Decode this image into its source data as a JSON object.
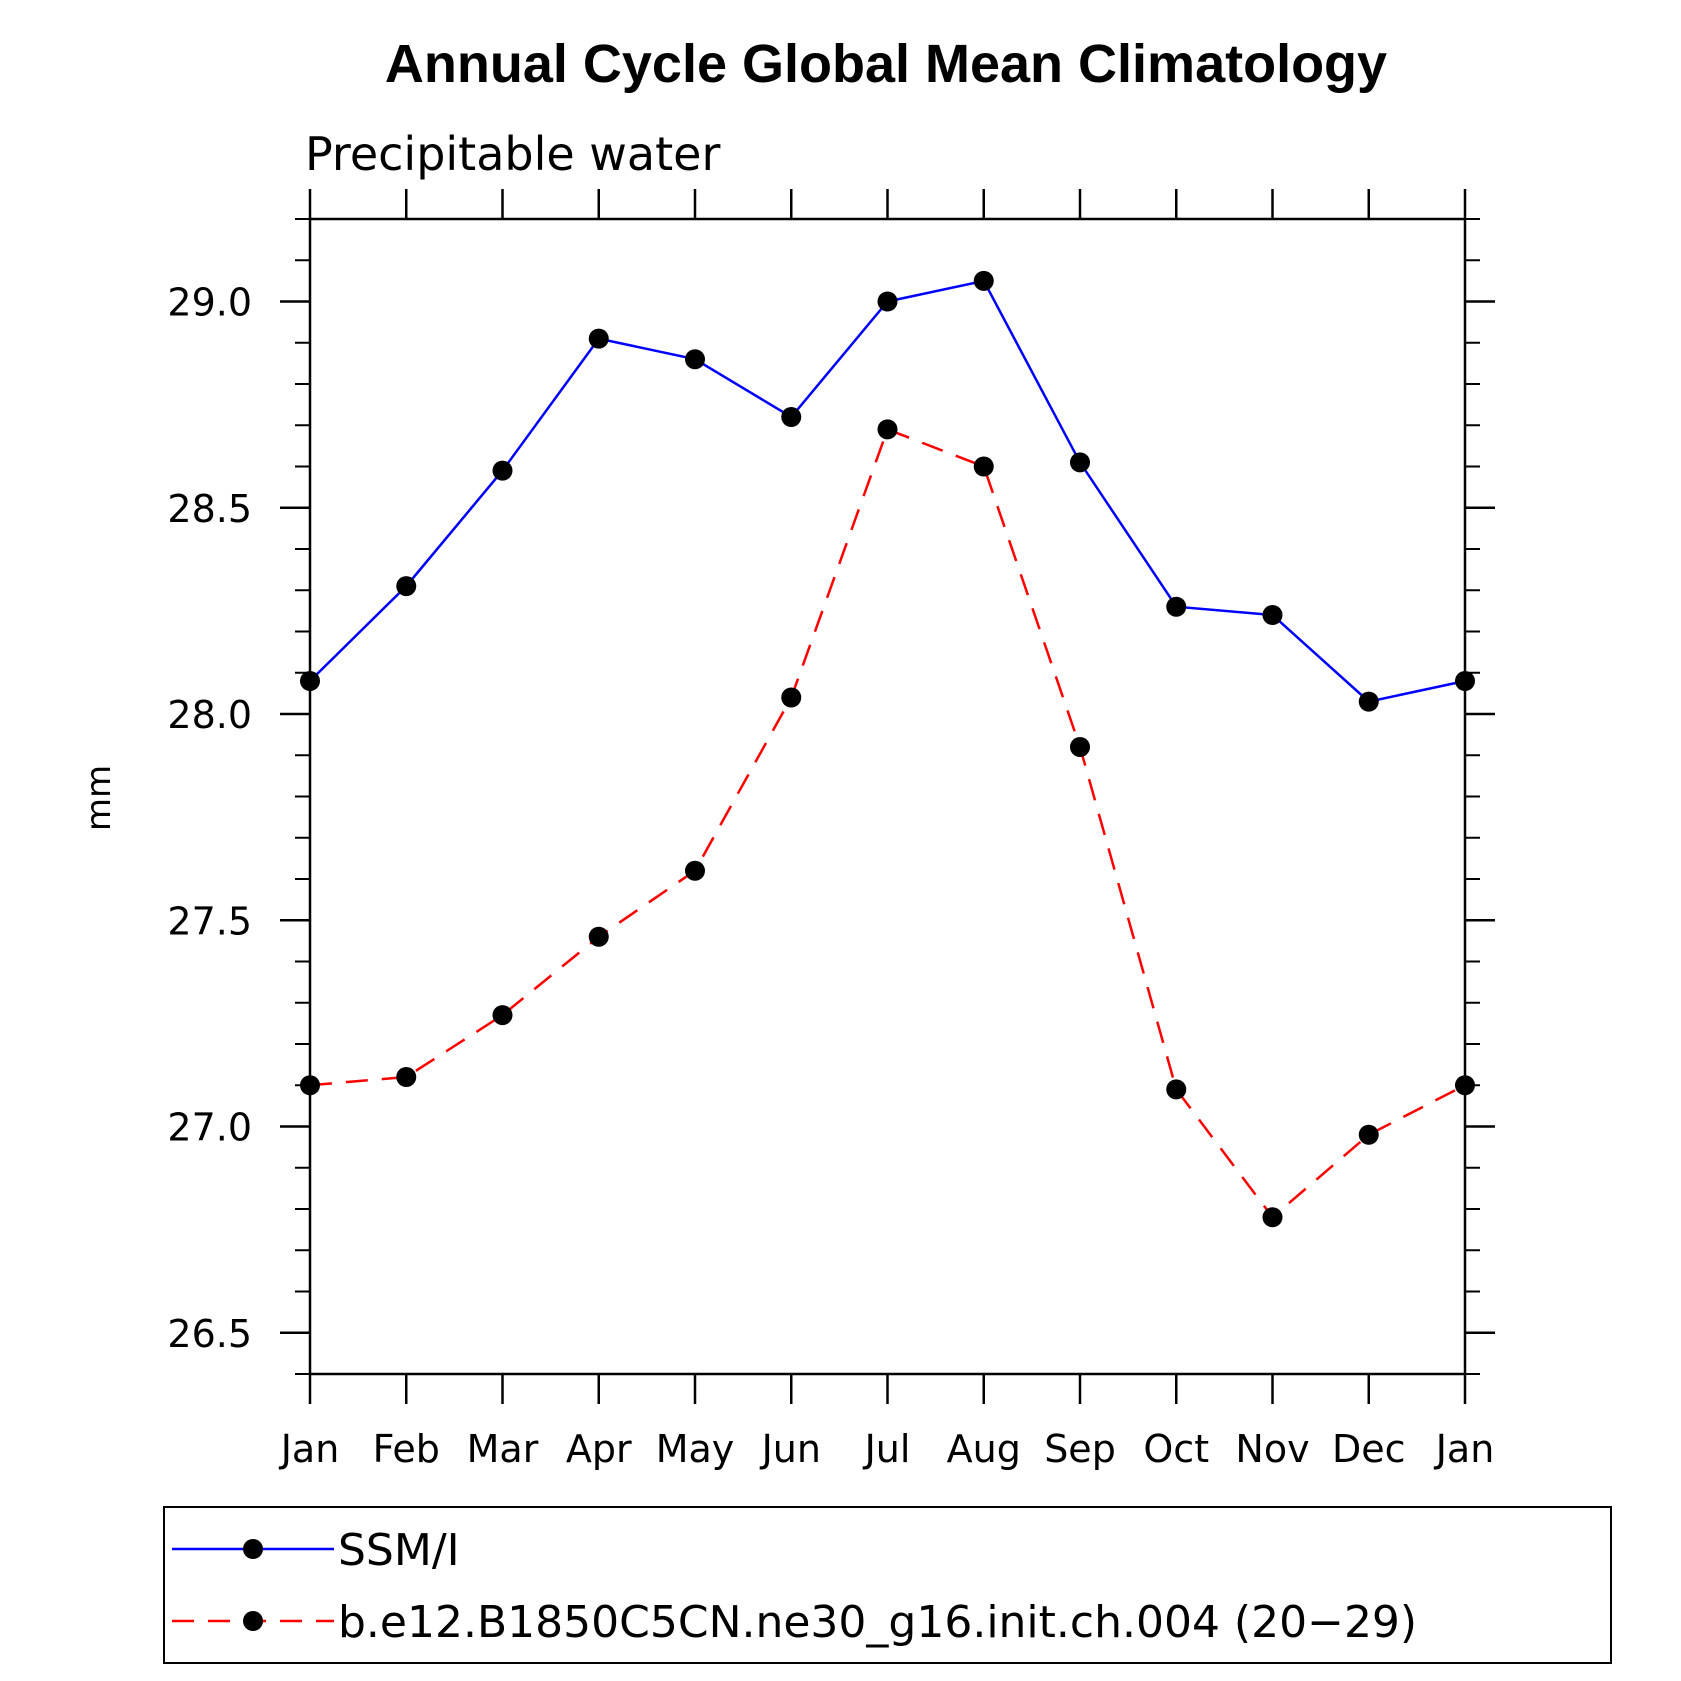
{
  "chart_data": {
    "type": "line",
    "title": "Annual Cycle Global Mean Climatology",
    "subtitle": "Precipitable water",
    "xlabel": "",
    "ylabel": "mm",
    "categories": [
      "Jan",
      "Feb",
      "Mar",
      "Apr",
      "May",
      "Jun",
      "Jul",
      "Aug",
      "Sep",
      "Oct",
      "Nov",
      "Dec",
      "Jan"
    ],
    "yticks": [
      "26.5",
      "27.0",
      "27.5",
      "28.0",
      "28.5",
      "29.0"
    ],
    "ylim": [
      26.4,
      29.2
    ],
    "grid": false,
    "legend_position": "bottom",
    "series": [
      {
        "name": "SSM/I",
        "color": "#0000ff",
        "line_style": "solid",
        "marker": "filled-circle",
        "values": [
          28.08,
          28.31,
          28.59,
          28.91,
          28.86,
          28.72,
          29.0,
          29.05,
          28.61,
          28.26,
          28.24,
          28.03,
          28.08
        ]
      },
      {
        "name": "b.e12.B1850C5CN.ne30_g16.init.ch.004 (20−29)",
        "color": "#ff0000",
        "line_style": "dashed",
        "marker": "filled-circle",
        "values": [
          27.1,
          27.12,
          27.27,
          27.46,
          27.62,
          28.04,
          28.69,
          28.6,
          27.92,
          27.09,
          26.78,
          26.98,
          27.1
        ]
      }
    ]
  }
}
